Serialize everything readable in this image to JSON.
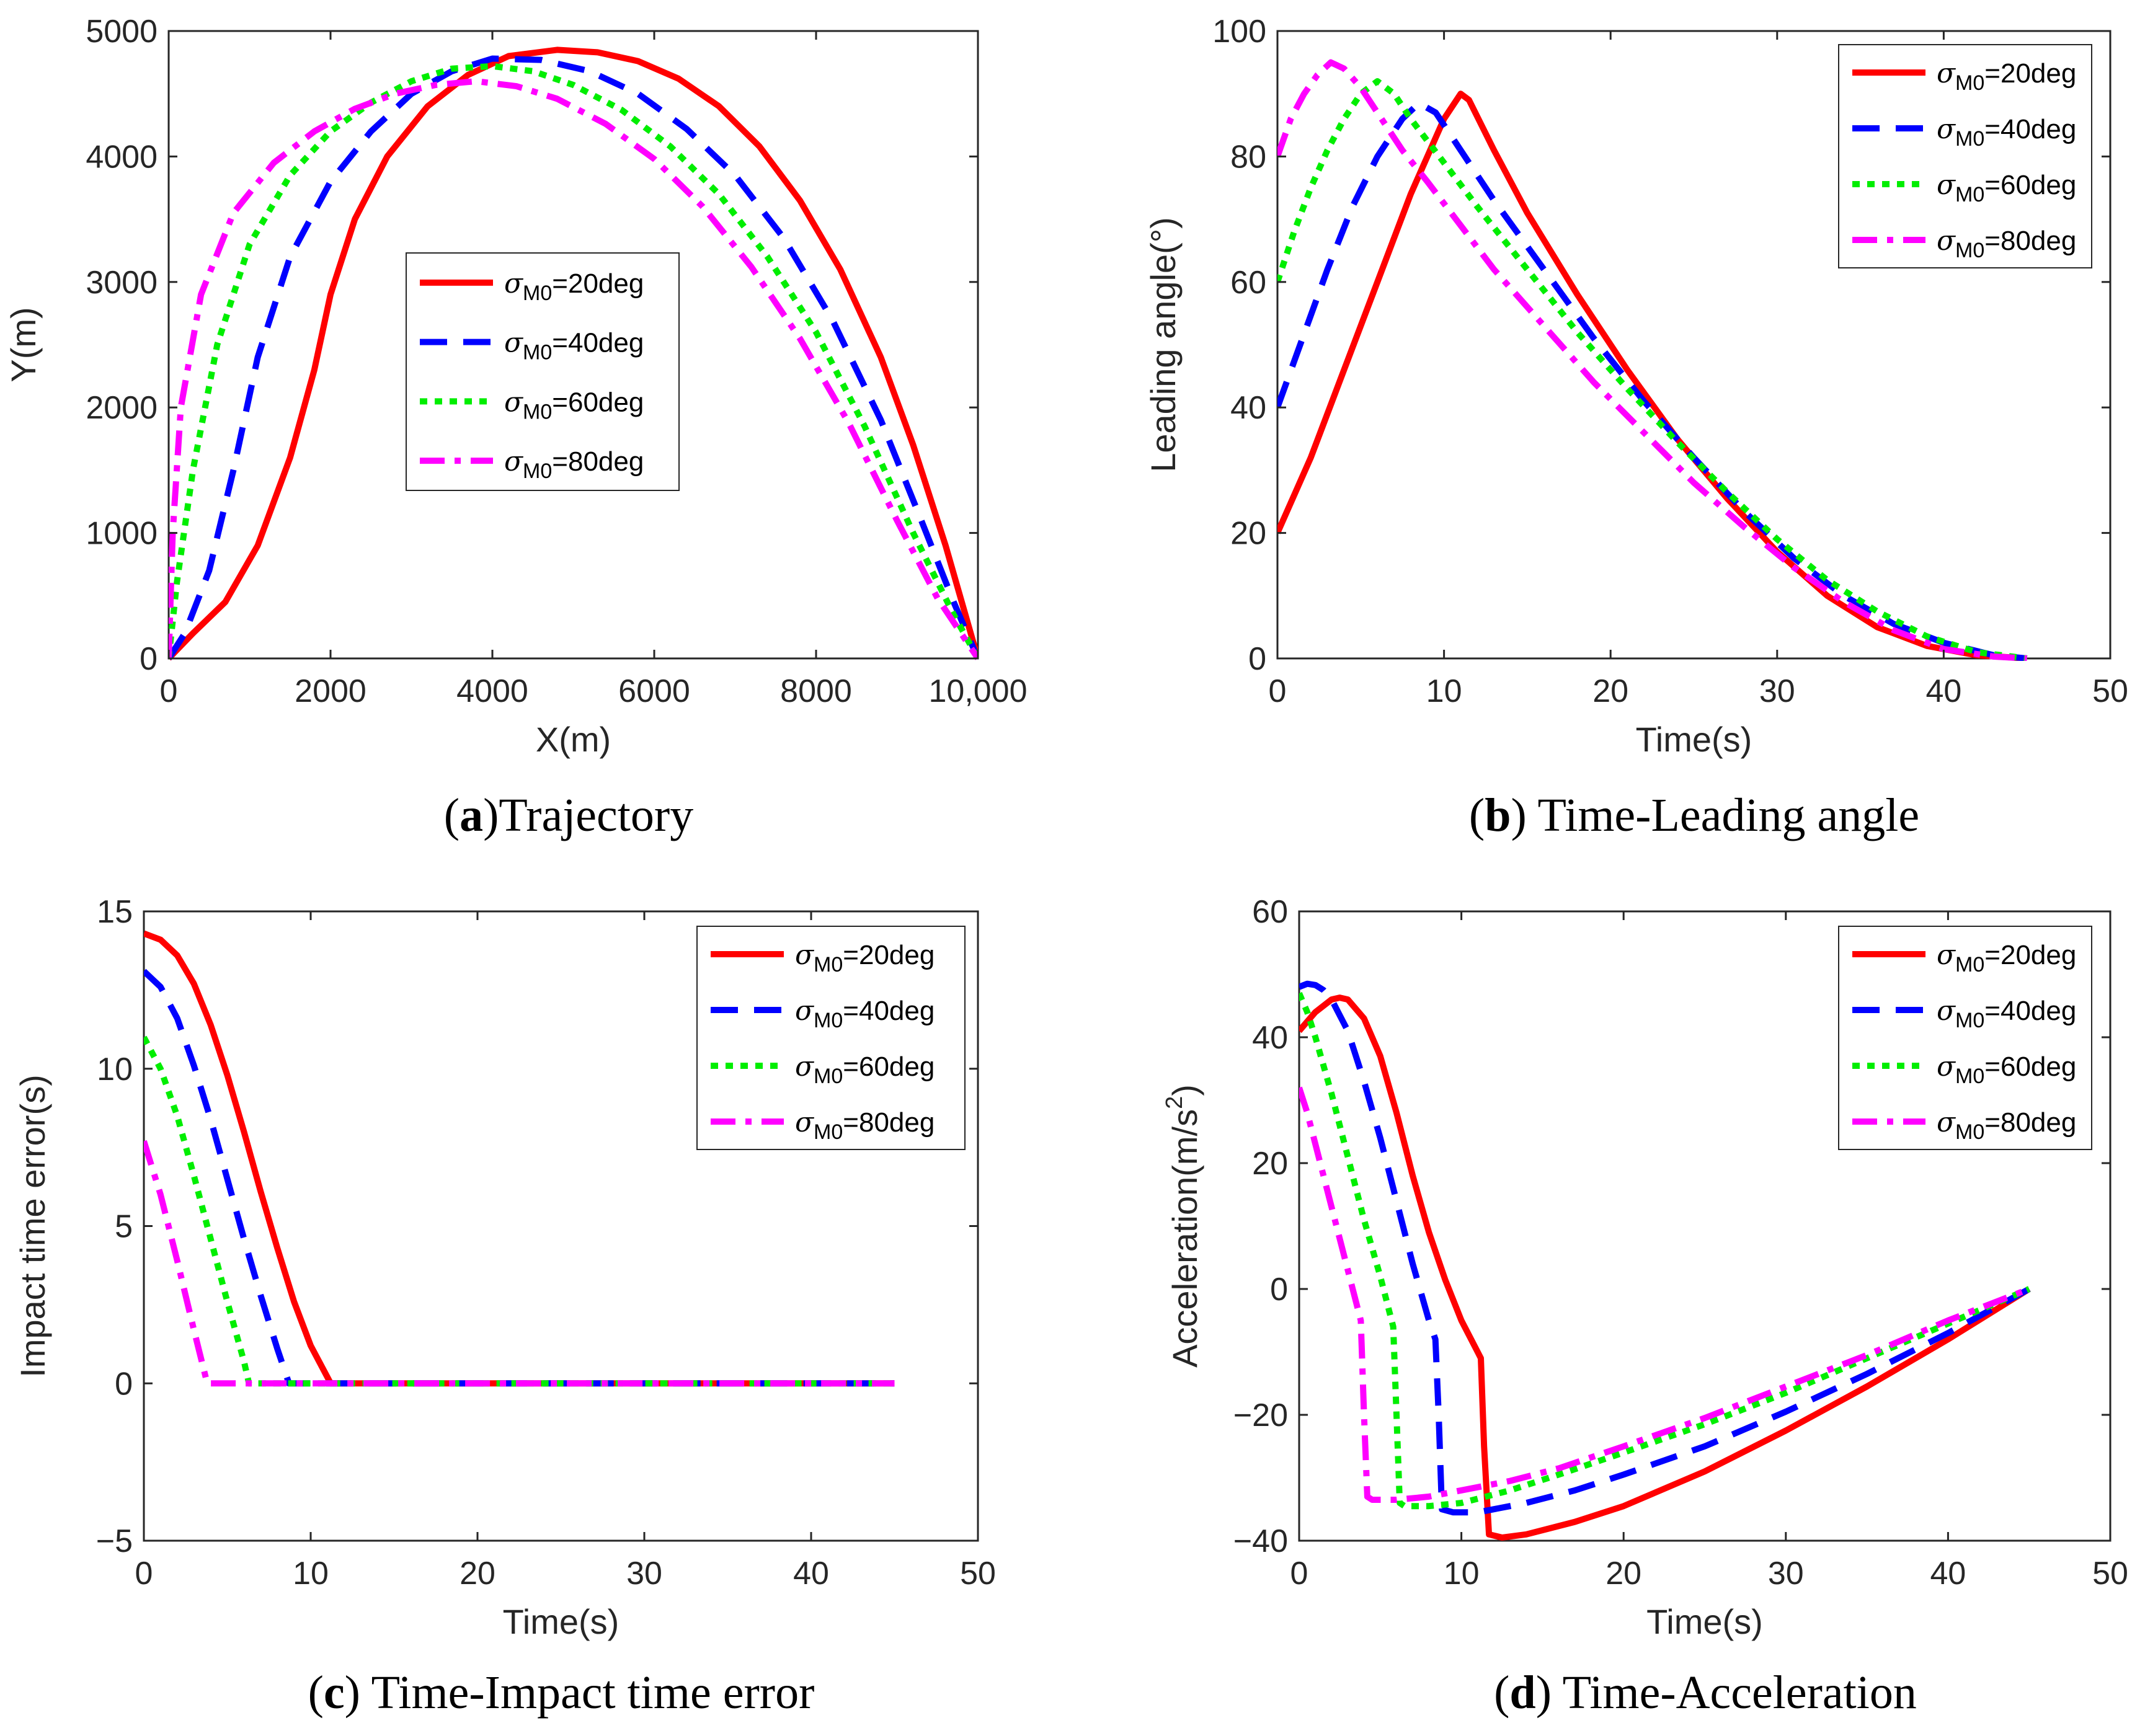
{
  "figure": {
    "legend_sub": "M0",
    "legend_symbol": "σ"
  },
  "chart_data": [
    {
      "id": "a",
      "type": "line",
      "caption_letter": "a",
      "caption_text": ")Trajectory",
      "xlabel": "X(m)",
      "ylabel": "Y(m)",
      "xlim": [
        0,
        10000
      ],
      "ylim": [
        0,
        5000
      ],
      "xticks": [
        0,
        2000,
        4000,
        6000,
        8000,
        10000
      ],
      "xtick_labels": [
        "0",
        "2000",
        "4000",
        "6000",
        "8000",
        "10,000"
      ],
      "yticks": [
        0,
        1000,
        2000,
        3000,
        4000,
        5000
      ],
      "ytick_labels": [
        "0",
        "1000",
        "2000",
        "3000",
        "4000",
        "5000"
      ],
      "legend_position": "center-left",
      "series": [
        {
          "name": "=20deg",
          "color": "#ff0000",
          "style": "solid",
          "x": [
            0,
            300,
            700,
            1100,
            1500,
            1800,
            2000,
            2300,
            2700,
            3200,
            3700,
            4200,
            4800,
            5300,
            5800,
            6300,
            6800,
            7300,
            7800,
            8300,
            8800,
            9200,
            9600,
            10000
          ],
          "y": [
            0,
            200,
            450,
            900,
            1600,
            2300,
            2900,
            3500,
            4000,
            4400,
            4650,
            4800,
            4850,
            4830,
            4760,
            4620,
            4400,
            4080,
            3650,
            3100,
            2400,
            1700,
            900,
            0
          ]
        },
        {
          "name": "=40deg",
          "color": "#0000ff",
          "style": "dashed",
          "x": [
            0,
            200,
            500,
            800,
            1100,
            1500,
            2000,
            2500,
            3000,
            3500,
            4000,
            4600,
            5200,
            5800,
            6400,
            7000,
            7600,
            8200,
            8800,
            9300,
            9700,
            10000
          ],
          "y": [
            0,
            200,
            700,
            1500,
            2400,
            3200,
            3800,
            4200,
            4500,
            4680,
            4780,
            4770,
            4680,
            4500,
            4220,
            3850,
            3350,
            2700,
            1900,
            1100,
            450,
            0
          ]
        },
        {
          "name": "=60deg",
          "color": "#00ee00",
          "style": "dotted",
          "x": [
            0,
            100,
            300,
            600,
            1000,
            1500,
            2000,
            2500,
            3000,
            3500,
            4000,
            4500,
            5000,
            5600,
            6200,
            6800,
            7400,
            8000,
            8600,
            9200,
            9700,
            10000
          ],
          "y": [
            0,
            600,
            1500,
            2500,
            3300,
            3850,
            4200,
            4430,
            4600,
            4700,
            4720,
            4680,
            4570,
            4370,
            4080,
            3700,
            3200,
            2600,
            1850,
            1000,
            350,
            0
          ]
        },
        {
          "name": "=80deg",
          "color": "#ff00ff",
          "style": "dashdot",
          "x": [
            0,
            50,
            150,
            400,
            800,
            1300,
            1800,
            2300,
            2800,
            3300,
            3800,
            4300,
            4800,
            5400,
            6000,
            6600,
            7200,
            7800,
            8400,
            9000,
            9500,
            10000
          ],
          "y": [
            0,
            1000,
            2000,
            2900,
            3550,
            3950,
            4200,
            4380,
            4500,
            4570,
            4600,
            4560,
            4460,
            4260,
            3980,
            3600,
            3120,
            2550,
            1880,
            1100,
            480,
            0
          ]
        }
      ]
    },
    {
      "id": "b",
      "type": "line",
      "caption_letter": "b",
      "caption_text": ") Time-Leading angle",
      "xlabel": "Time(s)",
      "ylabel": "Leading angle(°)",
      "xlim": [
        0,
        50
      ],
      "ylim": [
        0,
        100
      ],
      "xticks": [
        0,
        10,
        20,
        30,
        40,
        50
      ],
      "xtick_labels": [
        "0",
        "10",
        "20",
        "30",
        "40",
        "50"
      ],
      "yticks": [
        0,
        20,
        40,
        60,
        80,
        100
      ],
      "ytick_labels": [
        "0",
        "20",
        "40",
        "60",
        "80",
        "100"
      ],
      "legend_position": "top-right",
      "series": [
        {
          "name": "=20deg",
          "color": "#ff0000",
          "style": "solid",
          "x": [
            0,
            2,
            4,
            6,
            8,
            10,
            11,
            11.5,
            13,
            15,
            18,
            21,
            24,
            27,
            30,
            33,
            36,
            39,
            42,
            45
          ],
          "y": [
            20,
            32,
            46,
            60,
            74,
            86,
            90,
            89,
            81,
            71,
            58,
            46,
            35,
            25.5,
            17,
            10,
            5,
            2,
            0.5,
            0
          ]
        },
        {
          "name": "=40deg",
          "color": "#0000ff",
          "style": "dashed",
          "x": [
            0,
            1.5,
            3,
            4.5,
            6,
            7.5,
            8.5,
            9.5,
            11,
            13,
            16,
            19,
            22,
            25,
            28,
            31,
            34,
            37,
            40,
            43,
            45
          ],
          "y": [
            40,
            51,
            62,
            72,
            80,
            86,
            88.5,
            87,
            81,
            73,
            62,
            51,
            41,
            32,
            23.5,
            16,
            10,
            5.5,
            2.5,
            0.5,
            0
          ]
        },
        {
          "name": "=60deg",
          "color": "#00ee00",
          "style": "dotted",
          "x": [
            0,
            1,
            2,
            3,
            4,
            5,
            6,
            7,
            8,
            10,
            12,
            15,
            18,
            21,
            24,
            27,
            30,
            33,
            36,
            39,
            42,
            45
          ],
          "y": [
            60,
            68,
            75,
            81,
            86,
            90,
            92,
            90,
            86,
            79,
            72,
            62,
            52,
            43,
            34.5,
            26.5,
            19,
            12.5,
            7.5,
            3.5,
            1,
            0
          ]
        },
        {
          "name": "=80deg",
          "color": "#ff00ff",
          "style": "dashdot",
          "x": [
            0,
            0.8,
            1.6,
            2.4,
            3.2,
            4,
            5,
            6,
            7.5,
            9,
            11,
            13,
            16,
            19,
            22,
            25,
            28,
            31,
            34,
            37,
            40,
            43,
            45
          ],
          "y": [
            80,
            86,
            90,
            93,
            95,
            94,
            91,
            87,
            81,
            76,
            69,
            62,
            53,
            44,
            36,
            28,
            21,
            14.5,
            9,
            4.5,
            1.5,
            0.3,
            0
          ]
        }
      ]
    },
    {
      "id": "c",
      "type": "line",
      "caption_letter": "c",
      "caption_text": ") Time-Impact time error",
      "xlabel": "Time(s)",
      "ylabel": "Impact time error(s)",
      "xlim": [
        0,
        50
      ],
      "ylim": [
        -5,
        15
      ],
      "xticks": [
        0,
        10,
        20,
        30,
        40,
        50
      ],
      "xtick_labels": [
        "0",
        "10",
        "20",
        "30",
        "40",
        "50"
      ],
      "yticks": [
        -5,
        0,
        5,
        10,
        15
      ],
      "ytick_labels": [
        "−5",
        "0",
        "5",
        "10",
        "15"
      ],
      "legend_position": "top-right",
      "series": [
        {
          "name": "=20deg",
          "color": "#ff0000",
          "style": "solid",
          "x": [
            0,
            1,
            2,
            3,
            4,
            5,
            6,
            7,
            8,
            9,
            10,
            11,
            11.2,
            45
          ],
          "y": [
            14.3,
            14.1,
            13.6,
            12.7,
            11.4,
            9.8,
            8,
            6.1,
            4.3,
            2.6,
            1.2,
            0.2,
            0,
            0
          ]
        },
        {
          "name": "=40deg",
          "color": "#0000ff",
          "style": "dashed",
          "x": [
            0,
            1,
            2,
            3,
            4,
            5,
            6,
            7,
            8,
            8.7,
            45
          ],
          "y": [
            13.1,
            12.6,
            11.6,
            10.1,
            8.4,
            6.5,
            4.6,
            2.8,
            1.1,
            0,
            0
          ]
        },
        {
          "name": "=60deg",
          "color": "#00ee00",
          "style": "dotted",
          "x": [
            0,
            1,
            2,
            3,
            4,
            5,
            6,
            6.3,
            45
          ],
          "y": [
            11,
            10,
            8.5,
            6.6,
            4.6,
            2.6,
            0.7,
            0,
            0
          ]
        },
        {
          "name": "=80deg",
          "color": "#ff00ff",
          "style": "dashdot",
          "x": [
            0,
            1,
            2,
            3,
            3.8,
            45
          ],
          "y": [
            7.7,
            6,
            3.9,
            1.7,
            0,
            0
          ]
        }
      ]
    },
    {
      "id": "d",
      "type": "line",
      "caption_letter": "d",
      "caption_text": ") Time-Acceleration",
      "xlabel": "Time(s)",
      "ylabel": "Acceleration(m/s",
      "ylabel_sup": "2",
      "ylabel_end": ")",
      "xlim": [
        0,
        50
      ],
      "ylim": [
        -40,
        60
      ],
      "xticks": [
        0,
        10,
        20,
        30,
        40,
        50
      ],
      "xtick_labels": [
        "0",
        "10",
        "20",
        "30",
        "40",
        "50"
      ],
      "yticks": [
        -40,
        -20,
        0,
        20,
        40,
        60
      ],
      "ytick_labels": [
        "−40",
        "−20",
        "0",
        "20",
        "40",
        "60"
      ],
      "legend_position": "top-right",
      "series": [
        {
          "name": "=20deg",
          "color": "#ff0000",
          "style": "solid",
          "x": [
            0,
            1,
            2,
            2.5,
            3,
            4,
            5,
            6,
            7,
            8,
            9,
            10,
            11,
            11.2,
            11.4,
            11.7,
            12.5,
            14,
            17,
            20,
            25,
            30,
            35,
            40,
            45
          ],
          "y": [
            41,
            44,
            46,
            46.3,
            46,
            43,
            37,
            28,
            18,
            9,
            1.5,
            -5,
            -10,
            -11,
            -25,
            -39,
            -39.5,
            -39,
            -37,
            -34.5,
            -29,
            -22.5,
            -15.5,
            -8,
            0
          ]
        },
        {
          "name": "=40deg",
          "color": "#0000ff",
          "style": "dashed",
          "x": [
            0,
            0.5,
            1,
            1.5,
            2,
            3,
            4,
            5,
            6,
            7,
            8,
            8.4,
            8.6,
            8.8,
            9.5,
            11,
            14,
            17,
            20,
            25,
            30,
            35,
            40,
            45
          ],
          "y": [
            48,
            48.5,
            48.3,
            47.5,
            46,
            41,
            33,
            24,
            14,
            4,
            -5,
            -8,
            -20,
            -35,
            -35.5,
            -35.5,
            -34,
            -32,
            -29.5,
            -25,
            -19.5,
            -13.5,
            -7,
            0
          ]
        },
        {
          "name": "=60deg",
          "color": "#00ee00",
          "style": "dotted",
          "x": [
            0,
            0.5,
            1,
            2,
            3,
            4,
            5,
            5.8,
            6,
            6.2,
            6.5,
            8,
            10,
            13,
            16,
            20,
            25,
            30,
            35,
            40,
            45
          ],
          "y": [
            47,
            44,
            40,
            31,
            21,
            11,
            2,
            -6,
            -20,
            -34,
            -34.5,
            -34.5,
            -34,
            -32,
            -29.5,
            -26,
            -21.5,
            -16.5,
            -11,
            -5.5,
            0
          ]
        },
        {
          "name": "=80deg",
          "color": "#ff00ff",
          "style": "dashdot",
          "x": [
            0,
            0.5,
            1,
            2,
            3,
            3.8,
            4,
            4.2,
            4.5,
            6,
            8,
            10,
            13,
            16,
            20,
            25,
            30,
            35,
            40,
            45
          ],
          "y": [
            32,
            28,
            23,
            13,
            3,
            -5,
            -20,
            -33,
            -33.5,
            -33.5,
            -33,
            -32,
            -30.5,
            -28.5,
            -25,
            -20.5,
            -15.5,
            -10.5,
            -5,
            0
          ]
        }
      ]
    }
  ]
}
